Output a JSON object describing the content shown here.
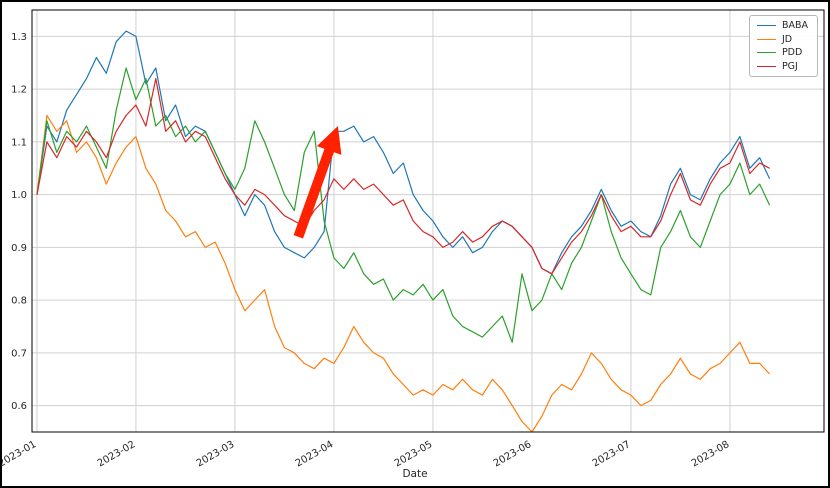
{
  "figure": {
    "xlabel": "Date"
  },
  "chart_data": {
    "type": "line",
    "title": "",
    "xlabel": "Date",
    "ylabel": "",
    "grid": true,
    "legend_position": "upper right",
    "x_tick_labels": [
      "2023-01",
      "2023-02",
      "2023-03",
      "2023-04",
      "2023-05",
      "2023-06",
      "2023-07",
      "2023-08"
    ],
    "x_tick_positions": [
      0,
      1,
      2,
      3,
      4,
      5,
      6,
      7
    ],
    "y_ticks": [
      0.6,
      0.7,
      0.8,
      0.9,
      1.0,
      1.1,
      1.2,
      1.3
    ],
    "xlim": [
      -0.05,
      7.95
    ],
    "ylim": [
      0.55,
      1.35
    ],
    "x_step": 0.1,
    "grid_color": "#d0d0d0",
    "spine_color": "#000000",
    "series": [
      {
        "name": "BABA",
        "color": "#1f77b4",
        "values": [
          1.0,
          1.13,
          1.1,
          1.16,
          1.19,
          1.22,
          1.26,
          1.23,
          1.29,
          1.31,
          1.3,
          1.21,
          1.24,
          1.14,
          1.17,
          1.11,
          1.13,
          1.12,
          1.08,
          1.04,
          1.0,
          0.96,
          1.0,
          0.98,
          0.93,
          0.9,
          0.89,
          0.88,
          0.9,
          0.93,
          1.12,
          1.12,
          1.13,
          1.1,
          1.11,
          1.08,
          1.04,
          1.06,
          1.0,
          0.97,
          0.95,
          0.92,
          0.9,
          0.92,
          0.89,
          0.9,
          0.93,
          0.95,
          0.94,
          0.92,
          0.9,
          0.86,
          0.85,
          0.89,
          0.92,
          0.94,
          0.97,
          1.01,
          0.97,
          0.94,
          0.95,
          0.93,
          0.92,
          0.96,
          1.02,
          1.05,
          1.0,
          0.99,
          1.03,
          1.06,
          1.08,
          1.11,
          1.05,
          1.07,
          1.03
        ]
      },
      {
        "name": "JD",
        "color": "#ff7f0e",
        "values": [
          1.0,
          1.15,
          1.12,
          1.14,
          1.08,
          1.1,
          1.07,
          1.02,
          1.06,
          1.09,
          1.11,
          1.05,
          1.02,
          0.97,
          0.95,
          0.92,
          0.93,
          0.9,
          0.91,
          0.87,
          0.82,
          0.78,
          0.8,
          0.82,
          0.75,
          0.71,
          0.7,
          0.68,
          0.67,
          0.69,
          0.68,
          0.71,
          0.75,
          0.72,
          0.7,
          0.69,
          0.66,
          0.64,
          0.62,
          0.63,
          0.62,
          0.64,
          0.63,
          0.65,
          0.63,
          0.62,
          0.65,
          0.63,
          0.6,
          0.57,
          0.55,
          0.58,
          0.62,
          0.64,
          0.63,
          0.66,
          0.7,
          0.68,
          0.65,
          0.63,
          0.62,
          0.6,
          0.61,
          0.64,
          0.66,
          0.69,
          0.66,
          0.65,
          0.67,
          0.68,
          0.7,
          0.72,
          0.68,
          0.68,
          0.66
        ]
      },
      {
        "name": "PDD",
        "color": "#2ca02c",
        "values": [
          1.0,
          1.14,
          1.08,
          1.12,
          1.1,
          1.13,
          1.09,
          1.05,
          1.16,
          1.24,
          1.18,
          1.22,
          1.13,
          1.15,
          1.11,
          1.13,
          1.1,
          1.12,
          1.08,
          1.04,
          1.01,
          1.05,
          1.14,
          1.1,
          1.05,
          1.0,
          0.97,
          1.08,
          1.12,
          0.95,
          0.88,
          0.86,
          0.89,
          0.85,
          0.83,
          0.84,
          0.8,
          0.82,
          0.81,
          0.83,
          0.8,
          0.82,
          0.77,
          0.75,
          0.74,
          0.73,
          0.75,
          0.77,
          0.72,
          0.85,
          0.78,
          0.8,
          0.85,
          0.82,
          0.87,
          0.9,
          0.95,
          1.0,
          0.93,
          0.88,
          0.85,
          0.82,
          0.81,
          0.9,
          0.93,
          0.97,
          0.92,
          0.9,
          0.95,
          1.0,
          1.02,
          1.06,
          1.0,
          1.02,
          0.98
        ]
      },
      {
        "name": "PGJ",
        "color": "#d62728",
        "values": [
          1.0,
          1.1,
          1.07,
          1.11,
          1.09,
          1.12,
          1.1,
          1.07,
          1.12,
          1.15,
          1.17,
          1.13,
          1.22,
          1.12,
          1.14,
          1.1,
          1.12,
          1.11,
          1.07,
          1.03,
          1.0,
          0.98,
          1.01,
          1.0,
          0.98,
          0.96,
          0.95,
          0.94,
          0.97,
          0.99,
          1.03,
          1.01,
          1.03,
          1.01,
          1.02,
          1.0,
          0.98,
          0.99,
          0.95,
          0.93,
          0.92,
          0.9,
          0.91,
          0.93,
          0.91,
          0.92,
          0.94,
          0.95,
          0.94,
          0.92,
          0.9,
          0.86,
          0.85,
          0.88,
          0.91,
          0.93,
          0.96,
          1.0,
          0.96,
          0.93,
          0.94,
          0.92,
          0.92,
          0.95,
          1.0,
          1.04,
          0.99,
          0.98,
          1.02,
          1.05,
          1.06,
          1.1,
          1.04,
          1.06,
          1.05
        ]
      }
    ],
    "annotation": {
      "type": "arrow",
      "color": "#ff2200",
      "from": [
        2.64,
        0.92
      ],
      "to": [
        3.04,
        1.13
      ]
    }
  }
}
